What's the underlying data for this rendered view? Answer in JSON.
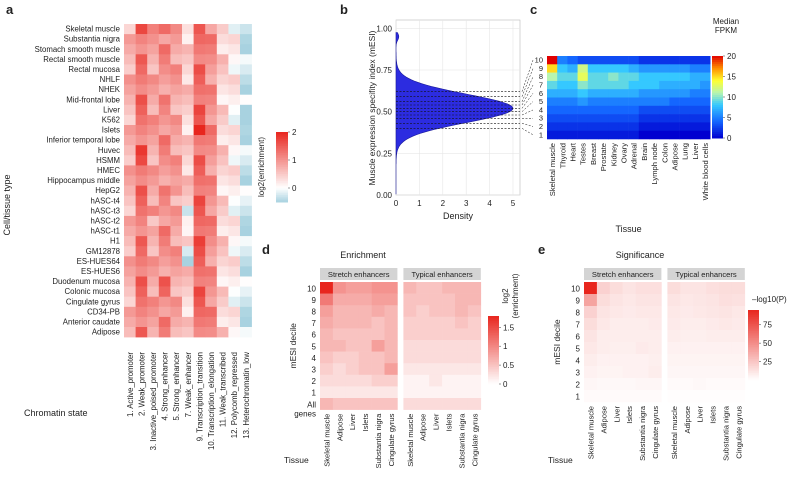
{
  "colors": {
    "red": "#e8261e",
    "white": "#ffffff",
    "lightblue": "#a8d2e0",
    "violin_fill": "#2c2ce0",
    "facet_header": "#d4d4d4"
  },
  "panel_labels": [
    "a",
    "b",
    "c",
    "d",
    "e"
  ],
  "chart_data": [
    {
      "id": "a",
      "type": "heatmap",
      "ylabel": "Cell/tissue type",
      "xlabel": "Chromatin state",
      "legend_title": "log2(enrichment)",
      "legend_ticks": [
        2,
        1,
        0
      ],
      "rows": [
        "Skeletal muscle",
        "Substantia nigra",
        "Stomach smooth muscle",
        "Rectal smooth muscle",
        "Rectal mucosa",
        "NHLF",
        "NHEK",
        "Mid-frontal lobe",
        "Liver",
        "K562",
        "Islets",
        "Inferior temporal lobe",
        "Huvec",
        "HSMM",
        "HMEC",
        "Hippocampus middle",
        "HepG2",
        "hASC-t4",
        "hASC-t3",
        "hASC-t2",
        "hASC-t1",
        "H1",
        "GM12878",
        "ES-HUES64",
        "ES-HUES6",
        "Duodenum mucosa",
        "Colonic mucosa",
        "Cingulate gyrus",
        "CD34-PB",
        "Anterior caudate",
        "Adipose"
      ],
      "cols": [
        "1. Active_promoter",
        "2. Weak_promoter",
        "3. Inactive_poised_promoter",
        "4. Strong_enhancer",
        "5. Strong_enhancer",
        "7. Weak_enhancer",
        "9. Transcription_transition",
        "10. Transcription_elongation",
        "11. Weak_transcribed",
        "12. Polycomb_repressed",
        "13. Heterochromatin_low"
      ],
      "col_profile": [
        0.7,
        1.3,
        0.85,
        1.05,
        0.85,
        0.45,
        1.4,
        1.05,
        0.4,
        0.15,
        -0.3
      ],
      "strong_cells": [
        [
          0,
          3,
          0.4
        ],
        [
          0,
          1,
          0.4
        ],
        [
          10,
          6,
          0.9
        ],
        [
          21,
          6,
          0.7
        ],
        [
          16,
          4,
          0.3
        ],
        [
          12,
          1,
          0.3
        ],
        [
          13,
          1,
          0.3
        ],
        [
          26,
          3,
          0.3
        ],
        [
          25,
          3,
          0.3
        ]
      ],
      "weak_cells": [
        [
          8,
          10,
          -0.4
        ],
        [
          18,
          5,
          -0.6
        ],
        [
          20,
          5,
          -0.6
        ],
        [
          22,
          5,
          -0.6
        ],
        [
          23,
          5,
          -0.8
        ],
        [
          19,
          2,
          -0.5
        ],
        [
          9,
          10,
          -0.2
        ]
      ],
      "range": [
        -0.5,
        2
      ]
    },
    {
      "id": "b",
      "type": "violin",
      "ylabel": "Muscle expression specifity index (mESI)",
      "xlabel": "Density",
      "xlim": [
        0,
        5.3
      ],
      "ylim": [
        0,
        1.05
      ],
      "xticks": [
        0,
        1,
        2,
        3,
        4,
        5
      ],
      "yticks": [
        0.0,
        0.25,
        0.5,
        0.75,
        1.0
      ],
      "density_peak": 5.0,
      "density_center": 0.52,
      "density_spread": 0.085,
      "decile_lines": [
        0.4,
        0.43,
        0.46,
        0.48,
        0.5,
        0.52,
        0.54,
        0.56,
        0.59,
        0.62
      ]
    },
    {
      "id": "c",
      "type": "heatmap",
      "ylabel": "",
      "xlabel": "Tissue",
      "legend_title": "Median\nFPKM",
      "legend_ticks": [
        20,
        15,
        10,
        5,
        0
      ],
      "range": [
        0,
        20
      ],
      "rows": [
        "10",
        "9",
        "8",
        "7",
        "6",
        "5",
        "4",
        "3",
        "2",
        "1"
      ],
      "cols": [
        "Skeletal muscle",
        "Thyroid",
        "Heart",
        "Testes",
        "Breast",
        "Prostate",
        "Kidney",
        "Ovary",
        "Adrenal",
        "Brain",
        "Lymph node",
        "Colon",
        "Adipose",
        "Lung",
        "Liver",
        "White blood cells"
      ],
      "values": [
        [
          20,
          5,
          4,
          3,
          3,
          3,
          3,
          3,
          3,
          2,
          2,
          2,
          2,
          2,
          2,
          2
        ],
        [
          15,
          8,
          7,
          12,
          8,
          8,
          8,
          8,
          7,
          6,
          6,
          6,
          6,
          6,
          5,
          5
        ],
        [
          11,
          9,
          9,
          13,
          9,
          9,
          10,
          9,
          9,
          8,
          8,
          8,
          8,
          8,
          7,
          7
        ],
        [
          9,
          8,
          8,
          10,
          9,
          9,
          9,
          9,
          8,
          8,
          8,
          7,
          7,
          7,
          7,
          6
        ],
        [
          7,
          7,
          7,
          8,
          7,
          7,
          7,
          7,
          7,
          6,
          6,
          6,
          6,
          6,
          5,
          5
        ],
        [
          5,
          5,
          5,
          6,
          5,
          5,
          5,
          5,
          5,
          5,
          5,
          5,
          4,
          4,
          4,
          4
        ],
        [
          4,
          4,
          4,
          4,
          4,
          4,
          4,
          4,
          4,
          3,
          3,
          3,
          3,
          3,
          3,
          3
        ],
        [
          3,
          3,
          3,
          3,
          3,
          3,
          3,
          3,
          3,
          2,
          2,
          2,
          2,
          2,
          2,
          2
        ],
        [
          2,
          2,
          2,
          2,
          2,
          2,
          2,
          2,
          2,
          1,
          1,
          1,
          1,
          1,
          1,
          1
        ],
        [
          1,
          1,
          1,
          1,
          1,
          1,
          1,
          1,
          1,
          0,
          0,
          0,
          0,
          0,
          0,
          0
        ]
      ]
    },
    {
      "id": "d",
      "type": "heatmap",
      "title": "Enrichment",
      "ylabel": "mESI decile",
      "xlabel": "Tissue",
      "legend_title": "log2\n(enrichment)",
      "legend_ticks": [
        1.5,
        1.0,
        0.5,
        0.0
      ],
      "range": [
        0,
        1.8
      ],
      "facets": [
        "Stretch enhancers",
        "Typical enhancers"
      ],
      "rows": [
        "10",
        "9",
        "8",
        "7",
        "6",
        "5",
        "4",
        "3",
        "2",
        "1",
        "All\ngenes"
      ],
      "cols": [
        "Skeletal muscle",
        "Adipose",
        "Liver",
        "Islets",
        "Substantia nigra",
        "Cingulate gyrus"
      ],
      "values_stretch": [
        [
          1.8,
          0.9,
          0.8,
          0.8,
          0.9,
          0.9
        ],
        [
          1.1,
          0.7,
          0.7,
          0.7,
          0.8,
          0.8
        ],
        [
          0.8,
          0.6,
          0.6,
          0.6,
          0.7,
          0.6
        ],
        [
          0.7,
          0.6,
          0.6,
          0.6,
          0.5,
          0.6
        ],
        [
          0.6,
          0.5,
          0.5,
          0.5,
          0.5,
          0.6
        ],
        [
          0.6,
          0.6,
          0.5,
          0.5,
          0.8,
          0.6
        ],
        [
          0.5,
          0.4,
          0.4,
          0.5,
          0.5,
          0.6
        ],
        [
          0.4,
          0.3,
          0.4,
          0.5,
          0.5,
          0.8
        ],
        [
          0.3,
          0.3,
          0.3,
          0.3,
          0.4,
          0.4
        ],
        [
          0.2,
          0.2,
          0.2,
          0.2,
          0.2,
          0.2
        ],
        [
          0.6,
          0.5,
          0.5,
          0.5,
          0.5,
          0.5
        ]
      ],
      "values_typical": [
        [
          0.6,
          0.5,
          0.5,
          0.6,
          0.6,
          0.6
        ],
        [
          0.5,
          0.5,
          0.5,
          0.5,
          0.6,
          0.6
        ],
        [
          0.5,
          0.4,
          0.5,
          0.5,
          0.6,
          0.5
        ],
        [
          0.4,
          0.4,
          0.4,
          0.4,
          0.5,
          0.4
        ],
        [
          0.4,
          0.4,
          0.4,
          0.4,
          0.4,
          0.4
        ],
        [
          0.3,
          0.3,
          0.3,
          0.3,
          0.3,
          0.3
        ],
        [
          0.3,
          0.3,
          0.3,
          0.3,
          0.3,
          0.3
        ],
        [
          0.2,
          0.2,
          0.2,
          0.2,
          0.2,
          0.2
        ],
        [
          0.1,
          0.1,
          0.2,
          0.1,
          0.1,
          0.1
        ],
        [
          0.1,
          0.1,
          0.1,
          0.1,
          0.1,
          0.1
        ],
        [
          0.3,
          0.3,
          0.3,
          0.3,
          0.3,
          0.3
        ]
      ]
    },
    {
      "id": "e",
      "type": "heatmap",
      "title": "Significance",
      "ylabel": "mESI decile",
      "xlabel": "Tissue",
      "legend_title": "–log10(P)",
      "legend_ticks": [
        75,
        50,
        25
      ],
      "range": [
        0,
        95
      ],
      "facets": [
        "Stretch enhancers",
        "Typical enhancers"
      ],
      "rows": [
        "10",
        "9",
        "8",
        "7",
        "6",
        "5",
        "4",
        "3",
        "2",
        "1"
      ],
      "cols": [
        "Skeletal muscle",
        "Adipose",
        "Liver",
        "Islets",
        "Substantia nigra",
        "Cingulate gyrus"
      ],
      "values_stretch": [
        [
          95,
          20,
          15,
          12,
          14,
          14
        ],
        [
          40,
          15,
          12,
          10,
          12,
          12
        ],
        [
          20,
          12,
          10,
          9,
          10,
          10
        ],
        [
          15,
          10,
          8,
          8,
          8,
          9
        ],
        [
          12,
          8,
          8,
          8,
          8,
          8
        ],
        [
          10,
          8,
          7,
          7,
          9,
          8
        ],
        [
          8,
          6,
          6,
          6,
          6,
          7
        ],
        [
          6,
          5,
          5,
          6,
          6,
          8
        ],
        [
          4,
          3,
          3,
          3,
          4,
          4
        ],
        [
          2,
          2,
          2,
          2,
          2,
          2
        ]
      ],
      "values_typical": [
        [
          15,
          12,
          12,
          14,
          15,
          15
        ],
        [
          12,
          10,
          11,
          12,
          14,
          13
        ],
        [
          10,
          9,
          10,
          11,
          12,
          10
        ],
        [
          9,
          8,
          8,
          9,
          10,
          9
        ],
        [
          8,
          7,
          7,
          8,
          8,
          8
        ],
        [
          6,
          6,
          6,
          6,
          6,
          6
        ],
        [
          5,
          5,
          5,
          5,
          5,
          5
        ],
        [
          4,
          4,
          4,
          4,
          4,
          4
        ],
        [
          2,
          2,
          3,
          2,
          2,
          2
        ],
        [
          1,
          1,
          1,
          1,
          1,
          1
        ]
      ]
    }
  ]
}
